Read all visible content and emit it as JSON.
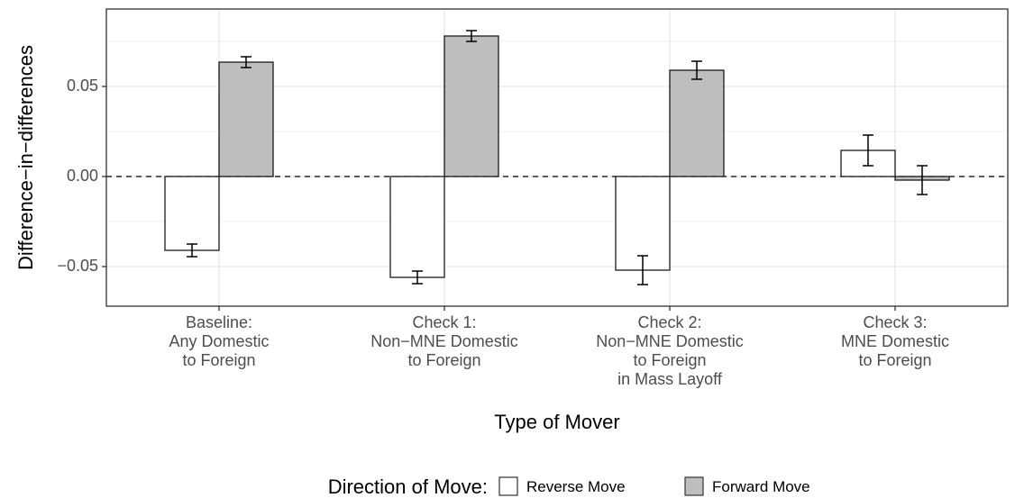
{
  "chart_data": {
    "type": "bar",
    "title": "",
    "xlabel": "Type of Mover",
    "ylabel": "Difference−in−differences",
    "ylim": [
      -0.072,
      0.093
    ],
    "yticks": [
      {
        "value": -0.05,
        "label": "−0.05"
      },
      {
        "value": 0.0,
        "label": "0.00"
      },
      {
        "value": 0.05,
        "label": "0.05"
      }
    ],
    "grid": true,
    "zero_line": "dashed",
    "categories": [
      {
        "lines": [
          "Baseline:",
          "Any Domestic",
          "to Foreign"
        ]
      },
      {
        "lines": [
          "Check 1:",
          "Non−MNE Domestic",
          "to Foreign"
        ]
      },
      {
        "lines": [
          "Check 2:",
          "Non−MNE Domestic",
          "to Foreign",
          "in Mass Layoff"
        ]
      },
      {
        "lines": [
          "Check 3:",
          "MNE Domestic",
          "to Foreign"
        ]
      }
    ],
    "series": [
      {
        "name": "Reverse Move",
        "color": "#ffffff",
        "values": [
          -0.041,
          -0.056,
          -0.052,
          0.0145
        ],
        "err_low": [
          -0.0445,
          -0.0595,
          -0.06,
          0.006
        ],
        "err_high": [
          -0.0375,
          -0.0525,
          -0.044,
          0.023
        ]
      },
      {
        "name": "Forward Move",
        "color": "#bebebe",
        "values": [
          0.0635,
          0.078,
          0.059,
          -0.002
        ],
        "err_low": [
          0.0605,
          0.075,
          0.054,
          -0.01
        ],
        "err_high": [
          0.0665,
          0.081,
          0.064,
          0.006
        ]
      }
    ],
    "legend": {
      "title": "Direction of Move:",
      "position": "bottom"
    }
  }
}
